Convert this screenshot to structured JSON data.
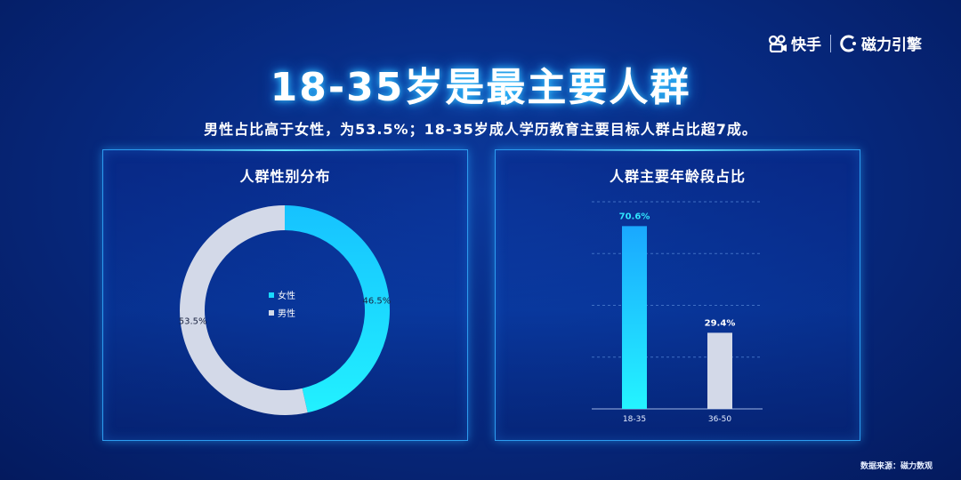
{
  "brand": {
    "kuaishou": "快手",
    "cili": "磁力引擎"
  },
  "title": "18-35岁是最主要人群",
  "subtitle": "男性占比高于女性，为53.5%；18-35岁成人学历教育主要目标人群占比超7成。",
  "source": "数据来源：磁力数观",
  "chart_data": [
    {
      "type": "pie",
      "title": "人群性别分布",
      "donut": true,
      "slices": [
        {
          "name": "女性",
          "value": 46.5,
          "label": "46.5%",
          "color": "#19d9ff"
        },
        {
          "name": "男性",
          "value": 53.5,
          "label": "53.5%",
          "color": "#d3d9e8"
        }
      ],
      "legend": "center"
    },
    {
      "type": "bar",
      "title": "人群主要年龄段占比",
      "categories": [
        "18-35",
        "36-50"
      ],
      "values": [
        70.6,
        29.4
      ],
      "labels": [
        "70.6%",
        "29.4%"
      ],
      "colors": [
        "#19d9ff",
        "#d3d9e8"
      ],
      "ylim": [
        0,
        80
      ],
      "grid": true
    }
  ]
}
